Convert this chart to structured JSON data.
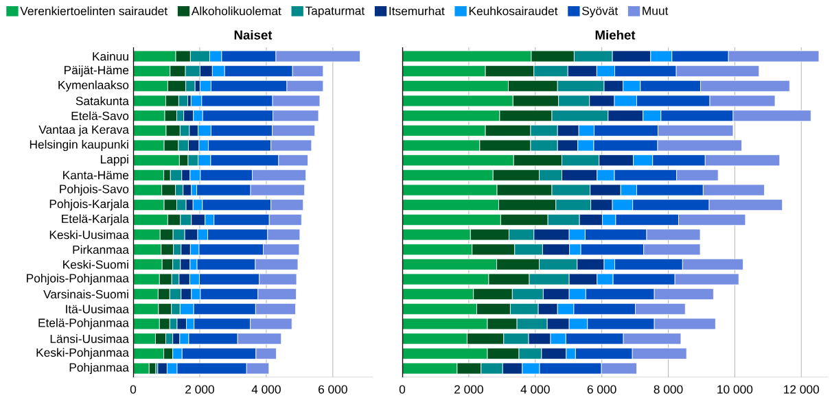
{
  "chart_data": [
    {
      "type": "bar",
      "orientation": "horizontal",
      "stacked": true,
      "title": "Naiset",
      "legend": "top",
      "grid": "x",
      "categories": [
        "Kainuu",
        "Päijät-Häme",
        "Kymenlaakso",
        "Satakunta",
        "Etelä-Savo",
        "Vantaa ja Kerava",
        "Helsingin kaupunki",
        "Lappi",
        "Kanta-Häme",
        "Pohjois-Savo",
        "Pohjois-Karjala",
        "Etelä-Karjala",
        "Keski-Uusimaa",
        "Pirkanmaa",
        "Keski-Suomi",
        "Pohjois-Pohjanmaa",
        "Varsinais-Suomi",
        "Itä-Uusimaa",
        "Etelä-Pohjanmaa",
        "Länsi-Uusimaa",
        "Keski-Pohjanmaa",
        "Pohjanmaa"
      ],
      "xlim": [
        0,
        7200
      ],
      "xticks": [
        0,
        {
          "value": 2000,
          "label": "2 000"
        },
        {
          "value": 4000,
          "label": "4 000"
        },
        {
          "value": 6000,
          "label": "6 000"
        }
      ],
      "series": [
        {
          "name": "Verenkiertoelinten sairaudet",
          "color": "#00a94f",
          "values": [
            1280,
            1110,
            1040,
            980,
            950,
            990,
            930,
            1390,
            920,
            860,
            930,
            1040,
            810,
            840,
            870,
            790,
            750,
            760,
            790,
            670,
            920,
            480
          ]
        },
        {
          "name": "Alkoholikuolemat",
          "color": "#005221",
          "values": [
            440,
            460,
            540,
            390,
            360,
            420,
            430,
            260,
            200,
            410,
            380,
            380,
            390,
            370,
            320,
            370,
            350,
            390,
            310,
            310,
            270,
            200
          ]
        },
        {
          "name": "Tapaturmat",
          "color": "#008a8e",
          "values": [
            580,
            440,
            280,
            270,
            210,
            280,
            300,
            300,
            340,
            230,
            280,
            330,
            350,
            230,
            230,
            220,
            340,
            260,
            220,
            210,
            null,
            60
          ]
        },
        {
          "name": "Itsemurhat",
          "color": "#003082",
          "values": [
            null,
            370,
            150,
            100,
            290,
            260,
            320,
            null,
            250,
            250,
            210,
            410,
            390,
            280,
            290,
            320,
            310,
            null,
            280,
            210,
            null,
            280
          ]
        },
        {
          "name": "Keuhkosairaudet",
          "color": "#0098ff",
          "values": [
            360,
            370,
            330,
            320,
            280,
            390,
            280,
            380,
            310,
            160,
            280,
            270,
            300,
            260,
            210,
            290,
            270,
            410,
            230,
            270,
            280,
            300
          ]
        },
        {
          "name": "Syövät",
          "color": "#004dc0",
          "values": [
            1630,
            2040,
            2280,
            2130,
            2110,
            1840,
            1880,
            2040,
            1560,
            1620,
            2060,
            1660,
            1800,
            1930,
            1750,
            1800,
            1730,
            1860,
            1690,
            1470,
            2220,
            2090
          ]
        },
        {
          "name": "Muut",
          "color": "#768ee1",
          "values": [
            2530,
            920,
            1090,
            1420,
            1370,
            1280,
            1220,
            880,
            1610,
            1620,
            970,
            970,
            970,
            1080,
            1280,
            1120,
            1150,
            1200,
            1250,
            1310,
            610,
            670
          ]
        }
      ]
    },
    {
      "type": "bar",
      "orientation": "horizontal",
      "stacked": true,
      "title": "Miehet",
      "grid": "x",
      "tick_labels": "x",
      "categories": [
        null,
        null,
        null,
        null,
        null,
        null,
        null,
        null,
        null,
        null,
        null,
        null,
        null,
        null,
        null,
        null,
        null,
        null,
        null,
        null,
        null,
        null
      ],
      "xlim": [
        0,
        12800
      ],
      "xticks": [
        0,
        {
          "value": 2000,
          "label": "2 000"
        },
        {
          "value": 4000,
          "label": "4 000"
        },
        {
          "value": 6000,
          "label": "6 000"
        },
        {
          "value": 8000,
          "label": "8 000"
        },
        {
          "value": 10000,
          "label": "10 000"
        },
        {
          "value": 12000,
          "label": "12 000"
        }
      ],
      "series": [
        {
          "color": "#00a94f",
          "values": [
            3880,
            2500,
            3190,
            3330,
            2930,
            2500,
            2330,
            3350,
            2730,
            2850,
            2900,
            2960,
            2050,
            2100,
            2840,
            2600,
            2140,
            2240,
            2560,
            1950,
            2560,
            1650
          ]
        },
        {
          "color": "#005221",
          "values": [
            1290,
            1460,
            1480,
            1370,
            1570,
            1360,
            1530,
            1450,
            1390,
            1650,
            1720,
            1420,
            1160,
            1280,
            1280,
            1220,
            1170,
            1010,
            890,
            1100,
            950,
            720
          ]
        },
        {
          "color": "#008a8e",
          "values": [
            1150,
            1020,
            1400,
            930,
            1690,
            810,
            810,
            1120,
            680,
            1150,
            1050,
            950,
            750,
            840,
            1140,
            1200,
            930,
            840,
            910,
            750,
            680,
            650
          ]
        },
        {
          "color": "#003082",
          "values": [
            1150,
            870,
            570,
            750,
            1050,
            640,
            610,
            1030,
            1060,
            920,
            650,
            690,
            1060,
            810,
            810,
            840,
            780,
            580,
            660,
            660,
            740,
            590
          ]
        },
        {
          "color": "#0098ff",
          "values": [
            640,
            540,
            520,
            670,
            540,
            460,
            480,
            580,
            520,
            480,
            610,
            400,
            480,
            340,
            320,
            480,
            500,
            490,
            550,
            460,
            280,
            520
          ]
        },
        {
          "color": "#004dc0",
          "values": [
            1700,
            1850,
            1810,
            2200,
            2170,
            1920,
            1920,
            1580,
            1870,
            2000,
            2300,
            1890,
            1850,
            1890,
            2040,
            1860,
            2060,
            1850,
            2010,
            1730,
            1710,
            1860
          ]
        },
        {
          "color": "#768ee1",
          "values": [
            2720,
            2490,
            2680,
            1960,
            2340,
            2260,
            2530,
            2240,
            1250,
            1840,
            2200,
            2010,
            1610,
            1700,
            1820,
            1920,
            1780,
            1500,
            1840,
            1730,
            1630,
            1060
          ]
        }
      ]
    }
  ]
}
